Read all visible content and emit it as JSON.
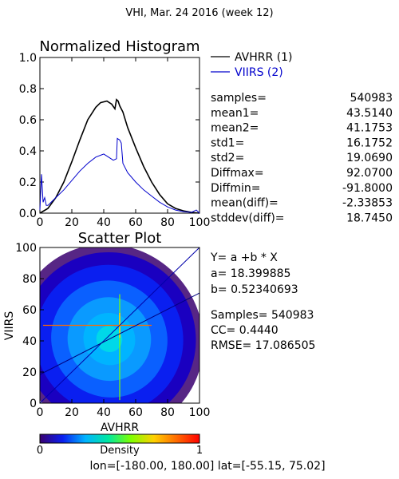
{
  "title": "VHI,  Mar. 24 2016 (week 12)",
  "footer": "lon=[-180.00, 180.00] lat=[-55.15, 75.02]",
  "colors": {
    "series1": "#000000",
    "series2": "#0000cc"
  },
  "stats_block": [
    {
      "label": "samples=",
      "value": "540983"
    },
    {
      "label": "mean1=",
      "value": "43.5140"
    },
    {
      "label": "mean2=",
      "value": "41.1753"
    },
    {
      "label": "std1=",
      "value": "16.1752"
    },
    {
      "label": "std2=",
      "value": "19.0690"
    },
    {
      "label": "Diffmax=",
      "value": "92.0700"
    },
    {
      "label": "Diffmin=",
      "value": "-91.8000"
    },
    {
      "label": "mean(diff)=",
      "value": "-2.33853"
    },
    {
      "label": "stddev(diff)=",
      "value": "18.7450"
    }
  ],
  "regression_block": {
    "line1": "Y= a +b * X",
    "line2": "a= 18.399885",
    "line3": "b= 0.52340693",
    "line4": "Samples= 540983",
    "line5": "CC=  0.4440",
    "line6": "RMSE= 17.086505"
  },
  "colorbar": {
    "label": "Density",
    "min_label": "0",
    "max_label": "1",
    "stops": [
      "#3a0070",
      "#0a1ff0",
      "#00b4ff",
      "#00e8a0",
      "#7fff00",
      "#ffd000",
      "#ff6a00",
      "#ff0000"
    ]
  },
  "chart_data": [
    {
      "type": "line",
      "title": "Normalized Histogram",
      "xlim": [
        0,
        100
      ],
      "ylim": [
        0,
        1.0
      ],
      "xticks": [
        "0",
        "20",
        "40",
        "60",
        "80",
        "100"
      ],
      "yticks": [
        "0.0",
        "0.2",
        "0.4",
        "0.6",
        "0.8",
        "1.0"
      ],
      "legend": "top-right",
      "series": [
        {
          "name": "AVHRR (1)",
          "x": [
            0,
            5,
            10,
            15,
            20,
            25,
            30,
            35,
            38,
            42,
            45,
            47,
            48,
            49,
            50,
            52,
            55,
            60,
            65,
            70,
            75,
            80,
            85,
            90,
            95,
            100
          ],
          "y": [
            0.0,
            0.03,
            0.1,
            0.2,
            0.33,
            0.47,
            0.6,
            0.68,
            0.71,
            0.72,
            0.7,
            0.67,
            0.73,
            0.72,
            0.69,
            0.65,
            0.55,
            0.42,
            0.3,
            0.2,
            0.12,
            0.06,
            0.03,
            0.015,
            0.005,
            0.0
          ]
        },
        {
          "name": "VIIRS (2)",
          "x": [
            0,
            1,
            2,
            3,
            4,
            5,
            10,
            15,
            20,
            25,
            30,
            35,
            40,
            43,
            46,
            48,
            48.5,
            50,
            51,
            52,
            55,
            60,
            65,
            70,
            75,
            80,
            85,
            90,
            95,
            98,
            100
          ],
          "y": [
            0.02,
            0.25,
            0.07,
            0.1,
            0.05,
            0.05,
            0.1,
            0.15,
            0.21,
            0.27,
            0.32,
            0.36,
            0.38,
            0.36,
            0.34,
            0.35,
            0.48,
            0.47,
            0.45,
            0.32,
            0.26,
            0.2,
            0.15,
            0.11,
            0.07,
            0.04,
            0.02,
            0.01,
            0.005,
            0.02,
            0.0
          ]
        }
      ]
    },
    {
      "type": "heatmap",
      "title": "Scatter Plot",
      "xlabel": "AVHRR",
      "ylabel": "VIIRS",
      "xlim": [
        0,
        100
      ],
      "ylim": [
        0,
        100
      ],
      "xticks": [
        "0",
        "20",
        "40",
        "60",
        "80",
        "100"
      ],
      "yticks": [
        "0",
        "20",
        "40",
        "60",
        "80",
        "100"
      ],
      "regression": {
        "a": 18.399885,
        "b": 0.52340693
      },
      "density_center": [
        43.5,
        41.2
      ]
    }
  ]
}
